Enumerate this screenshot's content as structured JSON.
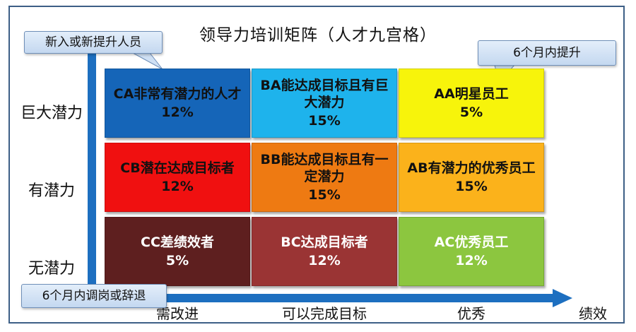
{
  "title": "领导力培训矩阵（人才九宫格）",
  "y_labels": [
    "巨大潜力",
    "有潜力",
    "无潜力"
  ],
  "x_labels": [
    "需改进",
    "可以完成目标",
    "优秀"
  ],
  "x_axis_end": "绩效",
  "cells": [
    {
      "text": "CA非常有潜力的人才",
      "percent": "12%",
      "color": "#1565b8",
      "text_color": "#111111"
    },
    {
      "text": "BA能达成目标且有巨大潜力",
      "percent": "15%",
      "color": "#1eb3ec",
      "text_color": "#111111"
    },
    {
      "text": "AA明星员工",
      "percent": "5%",
      "color": "#f7f40b",
      "text_color": "#111111"
    },
    {
      "text": "CB潜在达成目标者",
      "percent": "12%",
      "color": "#f01010",
      "text_color": "#111111"
    },
    {
      "text": "BB能达成目标且有一定潜力",
      "percent": "15%",
      "color": "#ee7a12",
      "text_color": "#111111"
    },
    {
      "text": "AB有潜力的优秀员工",
      "percent": "15%",
      "color": "#fbb21b",
      "text_color": "#111111"
    },
    {
      "text": "CC差绩效者",
      "percent": "5%",
      "color": "#5e1f1f",
      "text_color": "#ffffff"
    },
    {
      "text": "BC达成目标者",
      "percent": "12%",
      "color": "#9a3434",
      "text_color": "#ffffff"
    },
    {
      "text": "AC优秀员工",
      "percent": "12%",
      "color": "#8cc63f",
      "text_color": "#ffffff"
    }
  ],
  "callouts": {
    "new_staff": "新入或新提升人员",
    "promote": "6个月内提升",
    "transfer": "6个月内调岗或辞退"
  },
  "colors": {
    "axis": "#1d6fc0",
    "callout_border": "#6f8fb8",
    "frame": "#3d5f86"
  }
}
